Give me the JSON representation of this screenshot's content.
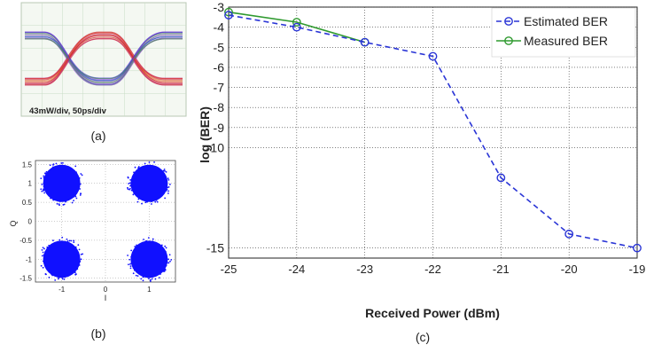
{
  "panels": {
    "a": {
      "caption": "(a)",
      "annotation": "43mW/div, 50ps/div"
    },
    "b": {
      "caption": "(b)",
      "xlabel": "I",
      "ylabel": "Q",
      "xticks": [
        "-1",
        "0",
        "1"
      ],
      "yticks": [
        "1.5",
        "1",
        "0.5",
        "0",
        "-0.5",
        "-1",
        "-1.5"
      ]
    },
    "c": {
      "caption": "(c)"
    }
  },
  "colors": {
    "estimated": "#2a35d6",
    "measured": "#2f9a2f",
    "constellation": "#1010ff",
    "eye_bg": "#d9e9d6"
  },
  "chart_data": [
    {
      "panel": "a",
      "type": "other",
      "description_text": "43mW/div, 50ps/div"
    },
    {
      "panel": "b",
      "type": "scatter",
      "xlabel": "I",
      "ylabel": "Q",
      "xlim": [
        -1.6,
        1.6
      ],
      "ylim": [
        -1.6,
        1.6
      ],
      "grid": true,
      "series": [
        {
          "values": [
            [
              -1,
              1
            ],
            [
              1,
              1
            ],
            [
              -1,
              -1
            ],
            [
              1,
              -1
            ]
          ]
        }
      ]
    },
    {
      "panel": "c",
      "type": "line",
      "xlabel": "Received Power (dBm)",
      "ylabel": "log (BER)",
      "xlim": [
        -25,
        -19
      ],
      "ylim": [
        -15.5,
        -3
      ],
      "x_ticks": [
        "-25",
        "-24",
        "-23",
        "-22",
        "-21",
        "-20",
        "-19"
      ],
      "y_ticks": [
        "-3",
        "-4",
        "-5",
        "-6",
        "-7",
        "-8",
        "-9",
        "-10",
        "-15"
      ],
      "grid": true,
      "legend_position": "top-right",
      "series": [
        {
          "name": "Estimated BER",
          "style": "dashed",
          "x": [
            -25,
            -24,
            -23,
            -22,
            -21,
            -20,
            -19
          ],
          "values": [
            -3.4,
            -4.0,
            -4.75,
            -5.45,
            -11.5,
            -14.3,
            -15.0
          ]
        },
        {
          "name": "Measured BER",
          "style": "solid",
          "x": [
            -25,
            -24,
            -23
          ],
          "values": [
            -3.25,
            -3.75,
            -4.75
          ]
        }
      ]
    }
  ]
}
